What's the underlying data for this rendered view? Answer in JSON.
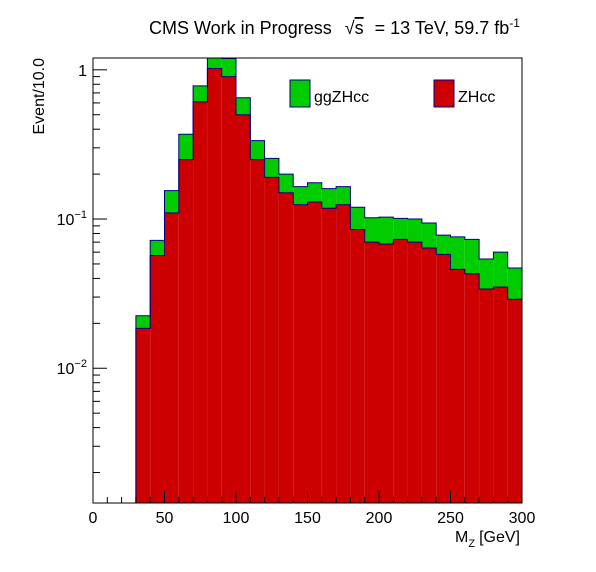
{
  "chart_data": {
    "type": "bar",
    "subtype": "stacked-histogram",
    "title": "CMS Work in Progress",
    "title_sqrt": "√",
    "title_s": "s",
    "title_energy": "= 13 TeV, 59.7 fb",
    "title_lumi_exp": "-1",
    "xlabel_main": "M",
    "xlabel_sub": "Z",
    "xlabel_unit": "[GeV]",
    "ylabel": "Event/10.0",
    "xlim": [
      0,
      300
    ],
    "ylim": [
      0.00125,
      1.2
    ],
    "yscale": "log",
    "bin_width": 10,
    "bin_edges_start": 30,
    "x_ticks": [
      {
        "v": 0,
        "label": "0"
      },
      {
        "v": 50,
        "label": "50"
      },
      {
        "v": 100,
        "label": "100"
      },
      {
        "v": 150,
        "label": "150"
      },
      {
        "v": 200,
        "label": "200"
      },
      {
        "v": 250,
        "label": "250"
      },
      {
        "v": 300,
        "label": "300"
      }
    ],
    "y_ticks": [
      {
        "v": 1,
        "base": "1",
        "exp": ""
      },
      {
        "v": 0.1,
        "base": "10",
        "exp": "−1"
      },
      {
        "v": 0.01,
        "base": "10",
        "exp": "−2"
      }
    ],
    "legend_position": "top",
    "series": [
      {
        "name": "ZHcc",
        "color": "#cc0000",
        "values": [
          0.0185,
          0.057,
          0.11,
          0.25,
          0.61,
          1.02,
          0.9,
          0.5,
          0.25,
          0.19,
          0.15,
          0.125,
          0.13,
          0.118,
          0.125,
          0.085,
          0.07,
          0.068,
          0.073,
          0.07,
          0.064,
          0.058,
          0.046,
          0.043,
          0.034,
          0.035,
          0.029
        ]
      },
      {
        "name": "ggZHcc",
        "color": "#00cc00",
        "values": [
          0.004,
          0.015,
          0.045,
          0.12,
          0.17,
          0.23,
          0.29,
          0.15,
          0.085,
          0.065,
          0.05,
          0.04,
          0.045,
          0.042,
          0.04,
          0.035,
          0.032,
          0.035,
          0.028,
          0.03,
          0.03,
          0.02,
          0.03,
          0.03,
          0.02,
          0.025,
          0.018
        ]
      }
    ]
  }
}
